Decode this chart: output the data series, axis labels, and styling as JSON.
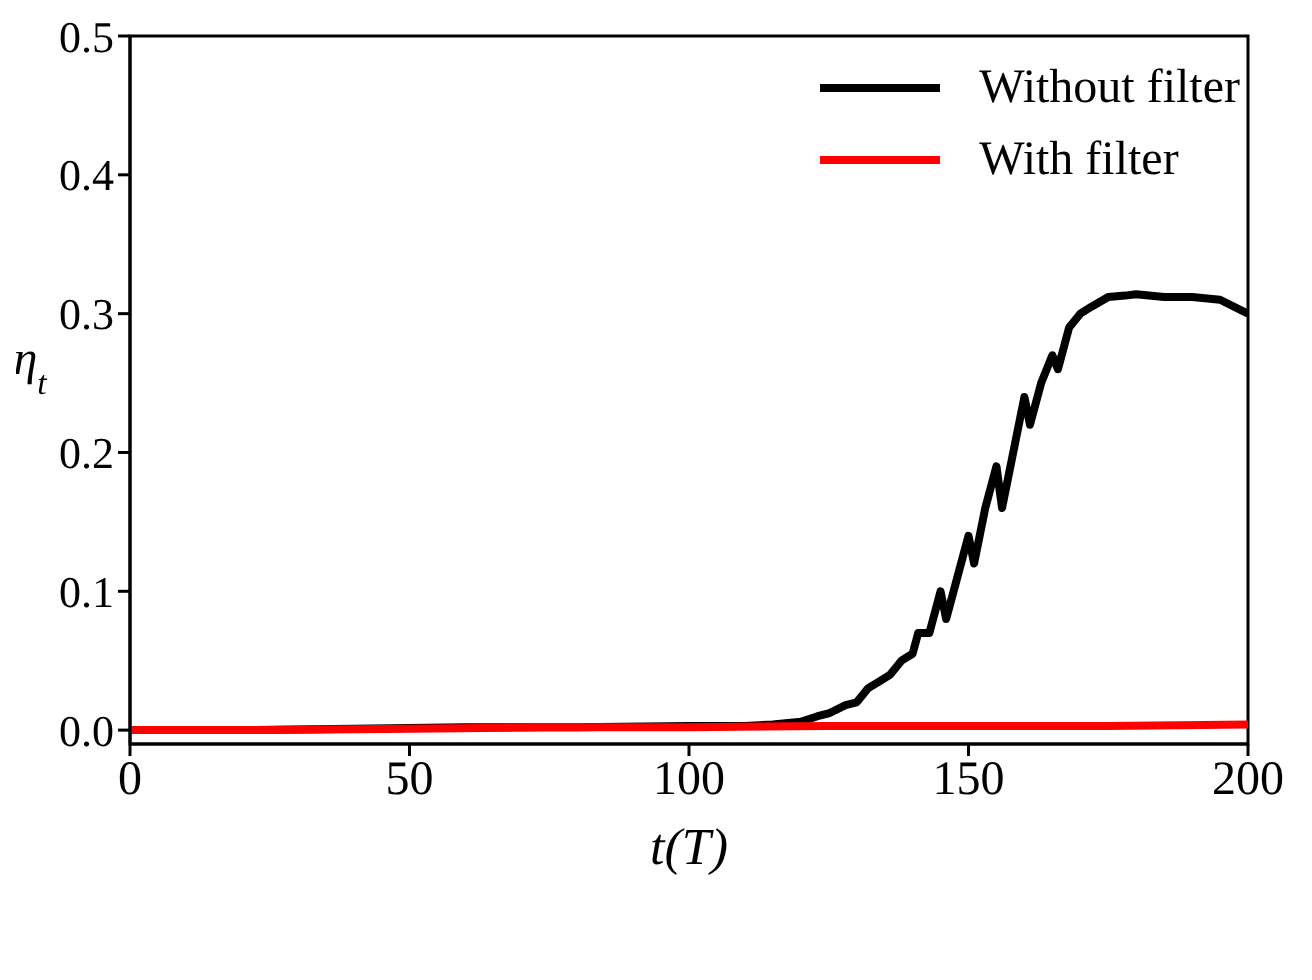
{
  "chart_data": {
    "type": "line",
    "xlabel": "t(T)",
    "ylabel": "η$_{t}$",
    "xlim": [
      0,
      200
    ],
    "xticks": [
      0,
      50,
      100,
      150,
      200
    ],
    "ylim": [
      -0.01,
      0.5
    ],
    "yticks": [
      {
        "value": 0,
        "label": "0.0"
      },
      {
        "value": 0.1,
        "label": "0.1"
      },
      {
        "value": 0.2,
        "label": "0.2"
      },
      {
        "value": 0.3,
        "label": "0.3"
      },
      {
        "value": 0.4,
        "label": "0.4"
      },
      {
        "value": 0.5,
        "label": "0.5"
      }
    ],
    "grid": false,
    "legend": "top right",
    "marker": "none",
    "line_style": "solid",
    "series": [
      {
        "name": "Without filter",
        "color": "#000000",
        "x": [
          0,
          20,
          40,
          60,
          80,
          100,
          110,
          115,
          120,
          123,
          125,
          128,
          130,
          132,
          134,
          136,
          138,
          140,
          141,
          143,
          145,
          146,
          148,
          150,
          151,
          153,
          155,
          156,
          158,
          160,
          161,
          163,
          165,
          166,
          168,
          170,
          172,
          175,
          178,
          180,
          185,
          190,
          195,
          200
        ],
        "values": [
          0,
          0,
          0.001,
          0.002,
          0.002,
          0.003,
          0.003,
          0.004,
          0.006,
          0.01,
          0.012,
          0.018,
          0.02,
          0.03,
          0.035,
          0.04,
          0.05,
          0.055,
          0.07,
          0.07,
          0.1,
          0.08,
          0.11,
          0.14,
          0.12,
          0.16,
          0.19,
          0.16,
          0.2,
          0.24,
          0.22,
          0.25,
          0.27,
          0.26,
          0.29,
          0.3,
          0.305,
          0.312,
          0.313,
          0.314,
          0.312,
          0.312,
          0.31,
          0.3
        ]
      },
      {
        "name": "With filter",
        "color": "#ff0000",
        "x": [
          0,
          25,
          50,
          75,
          100,
          125,
          150,
          175,
          200
        ],
        "values": [
          0,
          0,
          0.001,
          0.002,
          0.002,
          0.003,
          0.003,
          0.003,
          0.004
        ]
      }
    ]
  }
}
